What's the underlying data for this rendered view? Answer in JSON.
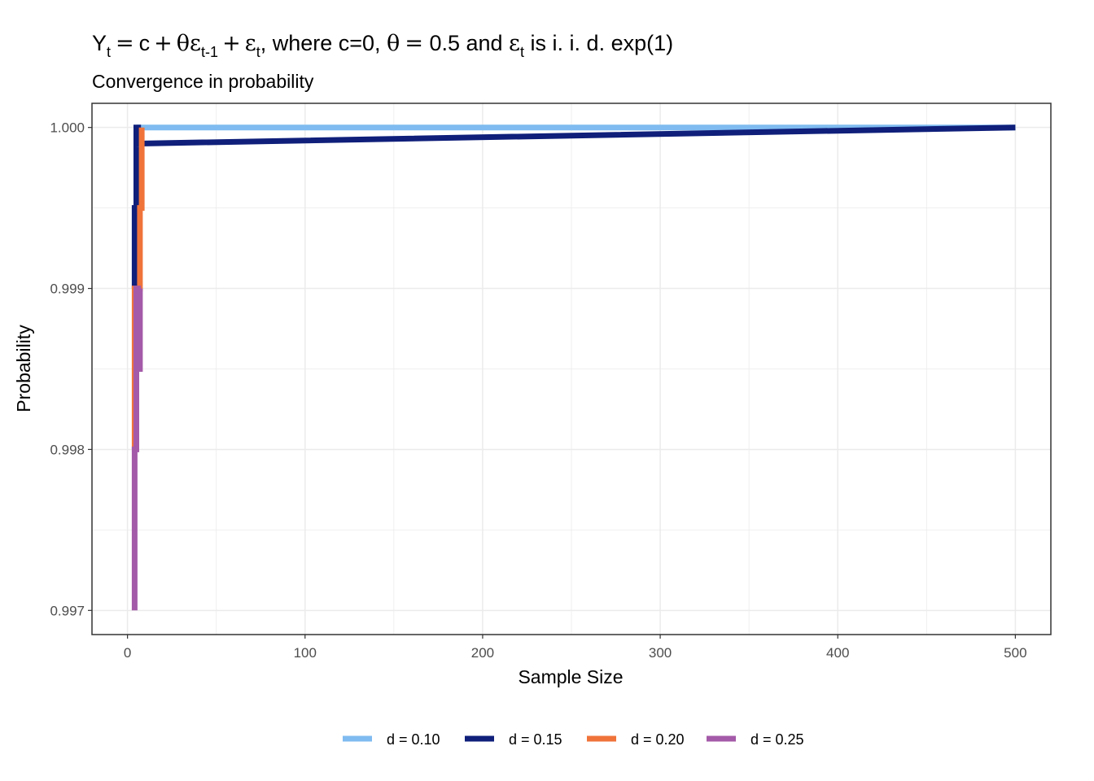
{
  "chart_data": {
    "type": "line",
    "title": {
      "Y": "Y",
      "t": "t",
      "eq1": "=",
      "c": "c",
      "plus1": "+",
      "theta": "θ",
      "eps1": "ε",
      "tminus1": "t-1",
      "plus2": "+",
      "eps2": "ε",
      "t2": "t",
      "mid": ", where c=0, ",
      "theta2": "θ",
      "eq2": "=",
      "half": " 0.5 and ",
      "eps3": "ε",
      "t3": "t",
      "tail": " is i. i. d. exp(1)"
    },
    "subtitle": "Convergence in probability",
    "xlabel": "Sample Size",
    "ylabel": "Probability",
    "xlim": [
      -20,
      520
    ],
    "ylim": [
      0.99685,
      1.00015
    ],
    "x_ticks": [
      0,
      100,
      200,
      300,
      400,
      500
    ],
    "x_tick_labels": [
      "0",
      "100",
      "200",
      "300",
      "400",
      "500"
    ],
    "y_ticks": [
      0.997,
      0.998,
      0.999,
      1.0
    ],
    "y_tick_labels": [
      "0.997",
      "0.998",
      "0.999",
      "1.000"
    ],
    "grid": true,
    "legend_position": "bottom",
    "series": [
      {
        "name": "d = 0.10",
        "color": "#7fbbf0",
        "x": [
          5,
          500
        ],
        "y": [
          1.0,
          1.0
        ]
      },
      {
        "name": "d = 0.15",
        "color": "#0f1f7a",
        "x": [
          4,
          4,
          5,
          5,
          6,
          6,
          500
        ],
        "y": [
          0.999,
          0.9995,
          0.9995,
          1.0,
          1.0,
          0.9999,
          1.0
        ]
      },
      {
        "name": "d = 0.20",
        "color": "#f0733a",
        "x": [
          4,
          4,
          5,
          5,
          7,
          7,
          8,
          8
        ],
        "y": [
          0.998,
          0.999,
          0.999,
          0.999,
          0.999,
          0.9995,
          0.9995,
          1.0
        ]
      },
      {
        "name": "d = 0.25",
        "color": "#a45aa8",
        "x": [
          4,
          4,
          5,
          5,
          6,
          6,
          7,
          7
        ],
        "y": [
          0.997,
          0.998,
          0.998,
          0.999,
          0.999,
          0.9985,
          0.9985,
          0.999
        ]
      }
    ]
  }
}
